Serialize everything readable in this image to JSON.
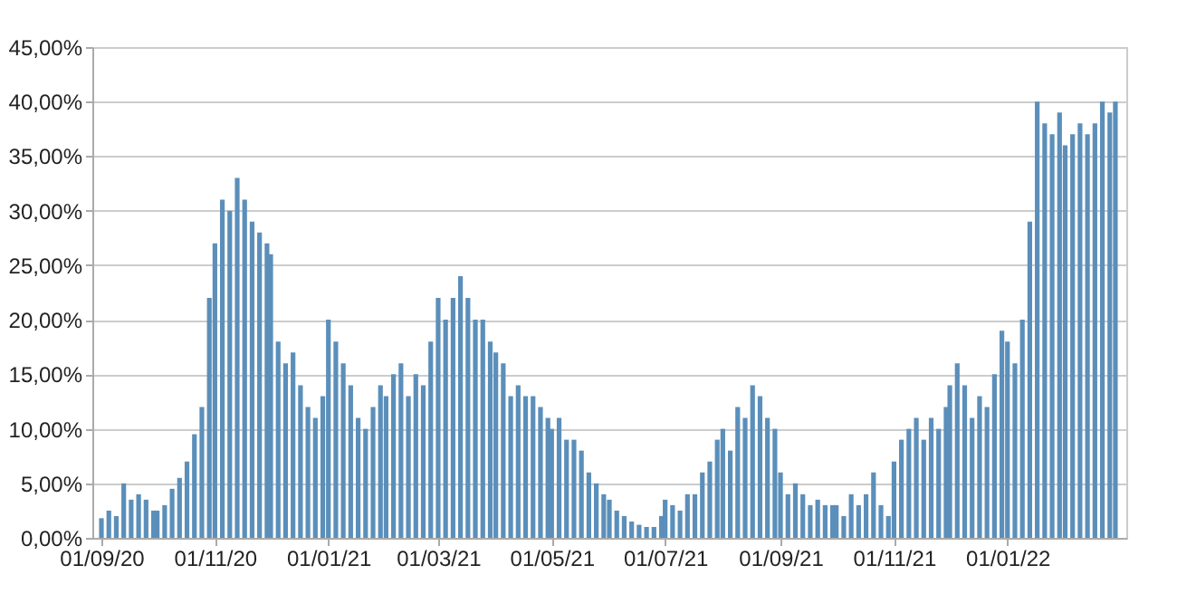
{
  "chart_data": {
    "type": "bar",
    "color": "#5b8fba",
    "x": [
      "2020-09-01",
      "2020-09-05",
      "2020-09-09",
      "2020-09-13",
      "2020-09-17",
      "2020-09-21",
      "2020-09-25",
      "2020-09-29",
      "2020-10-01",
      "2020-10-05",
      "2020-10-09",
      "2020-10-13",
      "2020-10-17",
      "2020-10-21",
      "2020-10-25",
      "2020-10-29",
      "2020-11-01",
      "2020-11-05",
      "2020-11-09",
      "2020-11-13",
      "2020-11-17",
      "2020-11-21",
      "2020-11-25",
      "2020-11-29",
      "2020-12-01",
      "2020-12-05",
      "2020-12-09",
      "2020-12-13",
      "2020-12-17",
      "2020-12-21",
      "2020-12-25",
      "2020-12-29",
      "2021-01-01",
      "2021-01-05",
      "2021-01-09",
      "2021-01-13",
      "2021-01-17",
      "2021-01-21",
      "2021-01-25",
      "2021-01-29",
      "2021-02-01",
      "2021-02-05",
      "2021-02-09",
      "2021-02-13",
      "2021-02-17",
      "2021-02-21",
      "2021-02-25",
      "2021-03-01",
      "2021-03-05",
      "2021-03-09",
      "2021-03-13",
      "2021-03-17",
      "2021-03-21",
      "2021-03-25",
      "2021-03-29",
      "2021-04-01",
      "2021-04-05",
      "2021-04-09",
      "2021-04-13",
      "2021-04-17",
      "2021-04-21",
      "2021-04-25",
      "2021-04-29",
      "2021-05-01",
      "2021-05-05",
      "2021-05-09",
      "2021-05-13",
      "2021-05-17",
      "2021-05-21",
      "2021-05-25",
      "2021-05-29",
      "2021-06-01",
      "2021-06-05",
      "2021-06-09",
      "2021-06-13",
      "2021-06-17",
      "2021-06-21",
      "2021-06-25",
      "2021-06-29",
      "2021-07-01",
      "2021-07-05",
      "2021-07-09",
      "2021-07-13",
      "2021-07-17",
      "2021-07-21",
      "2021-07-25",
      "2021-07-29",
      "2021-08-01",
      "2021-08-05",
      "2021-08-09",
      "2021-08-13",
      "2021-08-17",
      "2021-08-21",
      "2021-08-25",
      "2021-08-29",
      "2021-09-01",
      "2021-09-05",
      "2021-09-09",
      "2021-09-13",
      "2021-09-17",
      "2021-09-21",
      "2021-09-25",
      "2021-09-29",
      "2021-10-01",
      "2021-10-05",
      "2021-10-09",
      "2021-10-13",
      "2021-10-17",
      "2021-10-21",
      "2021-10-25",
      "2021-10-29",
      "2021-11-01",
      "2021-11-05",
      "2021-11-09",
      "2021-11-13",
      "2021-11-17",
      "2021-11-21",
      "2021-11-25",
      "2021-11-29",
      "2021-12-01",
      "2021-12-05",
      "2021-12-09",
      "2021-12-13",
      "2021-12-17",
      "2021-12-21",
      "2021-12-25",
      "2021-12-29",
      "2022-01-01",
      "2022-01-05",
      "2022-01-09",
      "2022-01-13",
      "2022-01-17",
      "2022-01-21",
      "2022-01-25",
      "2022-01-29",
      "2022-02-01",
      "2022-02-05",
      "2022-02-09",
      "2022-02-13",
      "2022-02-17",
      "2022-02-21",
      "2022-02-25",
      "2022-02-28"
    ],
    "values": [
      1.8,
      2.5,
      2,
      5,
      3.5,
      4,
      3.5,
      2.5,
      2.5,
      3,
      4.5,
      5.5,
      7,
      9.5,
      12,
      22,
      27,
      31,
      30,
      33,
      31,
      29,
      28,
      27,
      26,
      18,
      16,
      17,
      14,
      12,
      11,
      13,
      20,
      18,
      16,
      14,
      11,
      10,
      12,
      14,
      13,
      15,
      16,
      13,
      15,
      14,
      18,
      22,
      20,
      22,
      24,
      22,
      20,
      20,
      18,
      17,
      16,
      13,
      14,
      13,
      13,
      12,
      11,
      10,
      11,
      9,
      9,
      8,
      6,
      5,
      4,
      3.5,
      2.5,
      2,
      1.5,
      1.2,
      1,
      1,
      2,
      3.5,
      3,
      2.5,
      4,
      4,
      6,
      7,
      9,
      10,
      8,
      12,
      11,
      14,
      13,
      11,
      10,
      6,
      4,
      5,
      4,
      3,
      3.5,
      3,
      3,
      3,
      2,
      4,
      3,
      4,
      6,
      3,
      2,
      7,
      9,
      10,
      11,
      9,
      11,
      10,
      12,
      14,
      16,
      14,
      11,
      13,
      12,
      15,
      19,
      18,
      16,
      20,
      29,
      40,
      38,
      37,
      39,
      36,
      37,
      38,
      37,
      38,
      40,
      39,
      40
    ],
    "xlim": [
      "2020-09-01",
      "2022-03-01"
    ],
    "xticks": [
      {
        "value": "2020-09-01",
        "label": "01/09/20"
      },
      {
        "value": "2020-11-01",
        "label": "01/11/20"
      },
      {
        "value": "2021-01-01",
        "label": "01/01/21"
      },
      {
        "value": "2021-03-01",
        "label": "01/03/21"
      },
      {
        "value": "2021-05-01",
        "label": "01/05/21"
      },
      {
        "value": "2021-07-01",
        "label": "01/07/21"
      },
      {
        "value": "2021-09-01",
        "label": "01/09/21"
      },
      {
        "value": "2021-11-01",
        "label": "01/11/21"
      },
      {
        "value": "2022-01-01",
        "label": "01/01/22"
      }
    ],
    "ylim": [
      0,
      45
    ],
    "yticks": [
      {
        "value": 0,
        "label": "0,00%"
      },
      {
        "value": 5,
        "label": "5,00%"
      },
      {
        "value": 10,
        "label": "10,00%"
      },
      {
        "value": 15,
        "label": "15,00%"
      },
      {
        "value": 20,
        "label": "20,00%"
      },
      {
        "value": 25,
        "label": "25,00%"
      },
      {
        "value": 30,
        "label": "30,00%"
      },
      {
        "value": 35,
        "label": "35,00%"
      },
      {
        "value": 40,
        "label": "40,00%"
      },
      {
        "value": 45,
        "label": "45,00%"
      }
    ],
    "grid": "y"
  }
}
